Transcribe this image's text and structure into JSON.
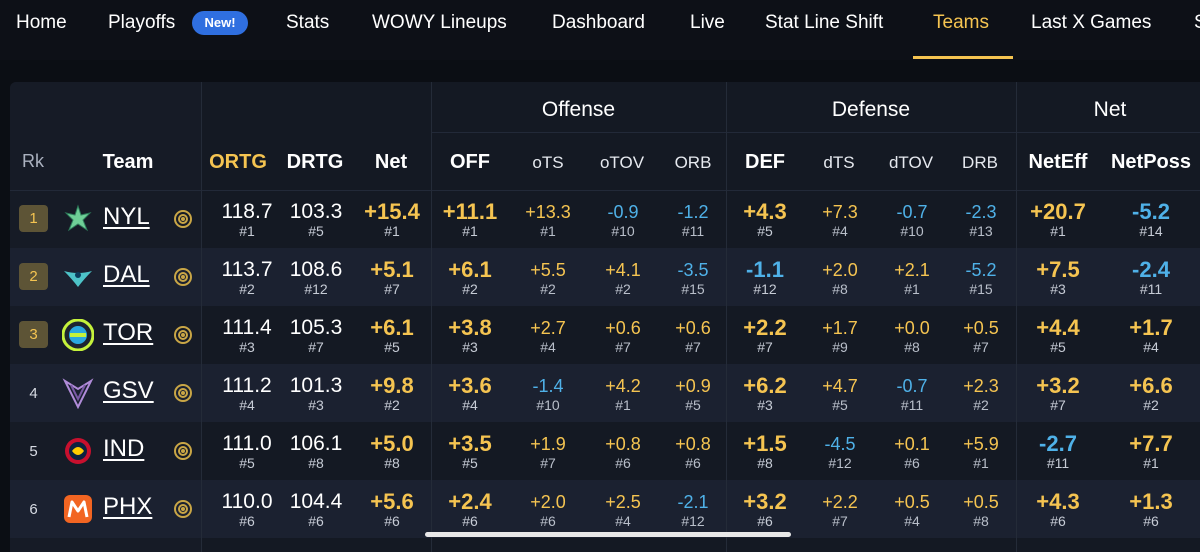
{
  "nav": {
    "items": [
      "Home",
      "Playoffs",
      "Stats",
      "WOWY Lineups",
      "Dashboard",
      "Live",
      "Stat Line Shift",
      "Teams",
      "Last X Games",
      "S"
    ],
    "badge": "New!",
    "active": "Teams"
  },
  "groups": [
    "Offense",
    "Defense",
    "Net"
  ],
  "headers": [
    "Rk",
    "Team",
    "ORTG",
    "DRTG",
    "Net",
    "OFF",
    "oTS",
    "oTOV",
    "ORB",
    "DEF",
    "dTS",
    "dTOV",
    "DRB",
    "NetEff",
    "NetPoss"
  ],
  "colors": {
    "accent": "#f5c451",
    "negative": "#4fb1e8",
    "background": "#0b0e14"
  },
  "rows": [
    {
      "rk": "1",
      "team": "NYL",
      "logo": "liberty-logo",
      "ortg": [
        "118.7",
        "#1"
      ],
      "drtg": [
        "103.3",
        "#5"
      ],
      "net": [
        "+15.4",
        "#1"
      ],
      "off": [
        "+11.1",
        "#1"
      ],
      "ots": [
        "+13.3",
        "#1"
      ],
      "otov": [
        "-0.9",
        "#10"
      ],
      "orb": [
        "-1.2",
        "#11"
      ],
      "def": [
        "+4.3",
        "#5"
      ],
      "dts": [
        "+7.3",
        "#4"
      ],
      "dtov": [
        "-0.7",
        "#10"
      ],
      "drb": [
        "-2.3",
        "#13"
      ],
      "neteff": [
        "+20.7",
        "#1"
      ],
      "netposs": [
        "-5.2",
        "#14"
      ]
    },
    {
      "rk": "2",
      "team": "DAL",
      "logo": "wings-logo",
      "ortg": [
        "113.7",
        "#2"
      ],
      "drtg": [
        "108.6",
        "#12"
      ],
      "net": [
        "+5.1",
        "#7"
      ],
      "off": [
        "+6.1",
        "#2"
      ],
      "ots": [
        "+5.5",
        "#2"
      ],
      "otov": [
        "+4.1",
        "#2"
      ],
      "orb": [
        "-3.5",
        "#15"
      ],
      "def": [
        "-1.1",
        "#12"
      ],
      "dts": [
        "+2.0",
        "#8"
      ],
      "dtov": [
        "+2.1",
        "#1"
      ],
      "drb": [
        "-5.2",
        "#15"
      ],
      "neteff": [
        "+7.5",
        "#3"
      ],
      "netposs": [
        "-2.4",
        "#11"
      ]
    },
    {
      "rk": "3",
      "team": "TOR",
      "logo": "tempo-logo",
      "ortg": [
        "111.4",
        "#3"
      ],
      "drtg": [
        "105.3",
        "#7"
      ],
      "net": [
        "+6.1",
        "#5"
      ],
      "off": [
        "+3.8",
        "#3"
      ],
      "ots": [
        "+2.7",
        "#4"
      ],
      "otov": [
        "+0.6",
        "#7"
      ],
      "orb": [
        "+0.6",
        "#7"
      ],
      "def": [
        "+2.2",
        "#7"
      ],
      "dts": [
        "+1.7",
        "#9"
      ],
      "dtov": [
        "+0.0",
        "#8"
      ],
      "drb": [
        "+0.5",
        "#7"
      ],
      "neteff": [
        "+4.4",
        "#5"
      ],
      "netposs": [
        "+1.7",
        "#4"
      ]
    },
    {
      "rk": "4",
      "team": "GSV",
      "logo": "valkyries-logo",
      "ortg": [
        "111.2",
        "#4"
      ],
      "drtg": [
        "101.3",
        "#3"
      ],
      "net": [
        "+9.8",
        "#2"
      ],
      "off": [
        "+3.6",
        "#4"
      ],
      "ots": [
        "-1.4",
        "#10"
      ],
      "otov": [
        "+4.2",
        "#1"
      ],
      "orb": [
        "+0.9",
        "#5"
      ],
      "def": [
        "+6.2",
        "#3"
      ],
      "dts": [
        "+4.7",
        "#5"
      ],
      "dtov": [
        "-0.7",
        "#11"
      ],
      "drb": [
        "+2.3",
        "#2"
      ],
      "neteff": [
        "+3.2",
        "#7"
      ],
      "netposs": [
        "+6.6",
        "#2"
      ]
    },
    {
      "rk": "5",
      "team": "IND",
      "logo": "fever-logo",
      "ortg": [
        "111.0",
        "#5"
      ],
      "drtg": [
        "106.1",
        "#8"
      ],
      "net": [
        "+5.0",
        "#8"
      ],
      "off": [
        "+3.5",
        "#5"
      ],
      "ots": [
        "+1.9",
        "#7"
      ],
      "otov": [
        "+0.8",
        "#6"
      ],
      "orb": [
        "+0.8",
        "#6"
      ],
      "def": [
        "+1.5",
        "#8"
      ],
      "dts": [
        "-4.5",
        "#12"
      ],
      "dtov": [
        "+0.1",
        "#6"
      ],
      "drb": [
        "+5.9",
        "#1"
      ],
      "neteff": [
        "-2.7",
        "#11"
      ],
      "netposs": [
        "+7.7",
        "#1"
      ]
    },
    {
      "rk": "6",
      "team": "PHX",
      "logo": "mercury-logo",
      "ortg": [
        "110.0",
        "#6"
      ],
      "drtg": [
        "104.4",
        "#6"
      ],
      "net": [
        "+5.6",
        "#6"
      ],
      "off": [
        "+2.4",
        "#6"
      ],
      "ots": [
        "+2.0",
        "#6"
      ],
      "otov": [
        "+2.5",
        "#4"
      ],
      "orb": [
        "-2.1",
        "#12"
      ],
      "def": [
        "+3.2",
        "#6"
      ],
      "dts": [
        "+2.2",
        "#7"
      ],
      "dtov": [
        "+0.5",
        "#4"
      ],
      "drb": [
        "+0.5",
        "#8"
      ],
      "neteff": [
        "+4.3",
        "#6"
      ],
      "netposs": [
        "+1.3",
        "#6"
      ]
    }
  ]
}
